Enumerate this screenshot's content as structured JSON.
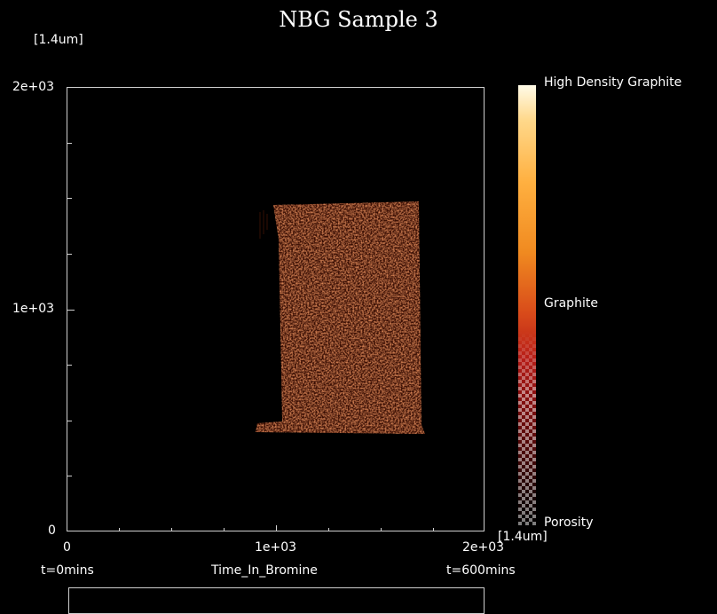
{
  "title": "NBG Sample 3",
  "y_unit": "[1.4um]",
  "y_ticks": [
    "2e+03",
    "1e+03",
    "0"
  ],
  "x_ticks": [
    "0",
    "1e+03",
    "2e+03"
  ],
  "x_time_start": "t=0mins",
  "x_label": "Time_In_Bromine",
  "x_time_end": "t=600mins",
  "colorbar": {
    "top_label": "High Density Graphite",
    "mid_label": "Graphite",
    "bottom_label": "Porosity",
    "unit": "[1.4um]"
  },
  "colors": {
    "background": "#000000",
    "frame": "#cfcfcf",
    "sample": "#7a2a10"
  }
}
